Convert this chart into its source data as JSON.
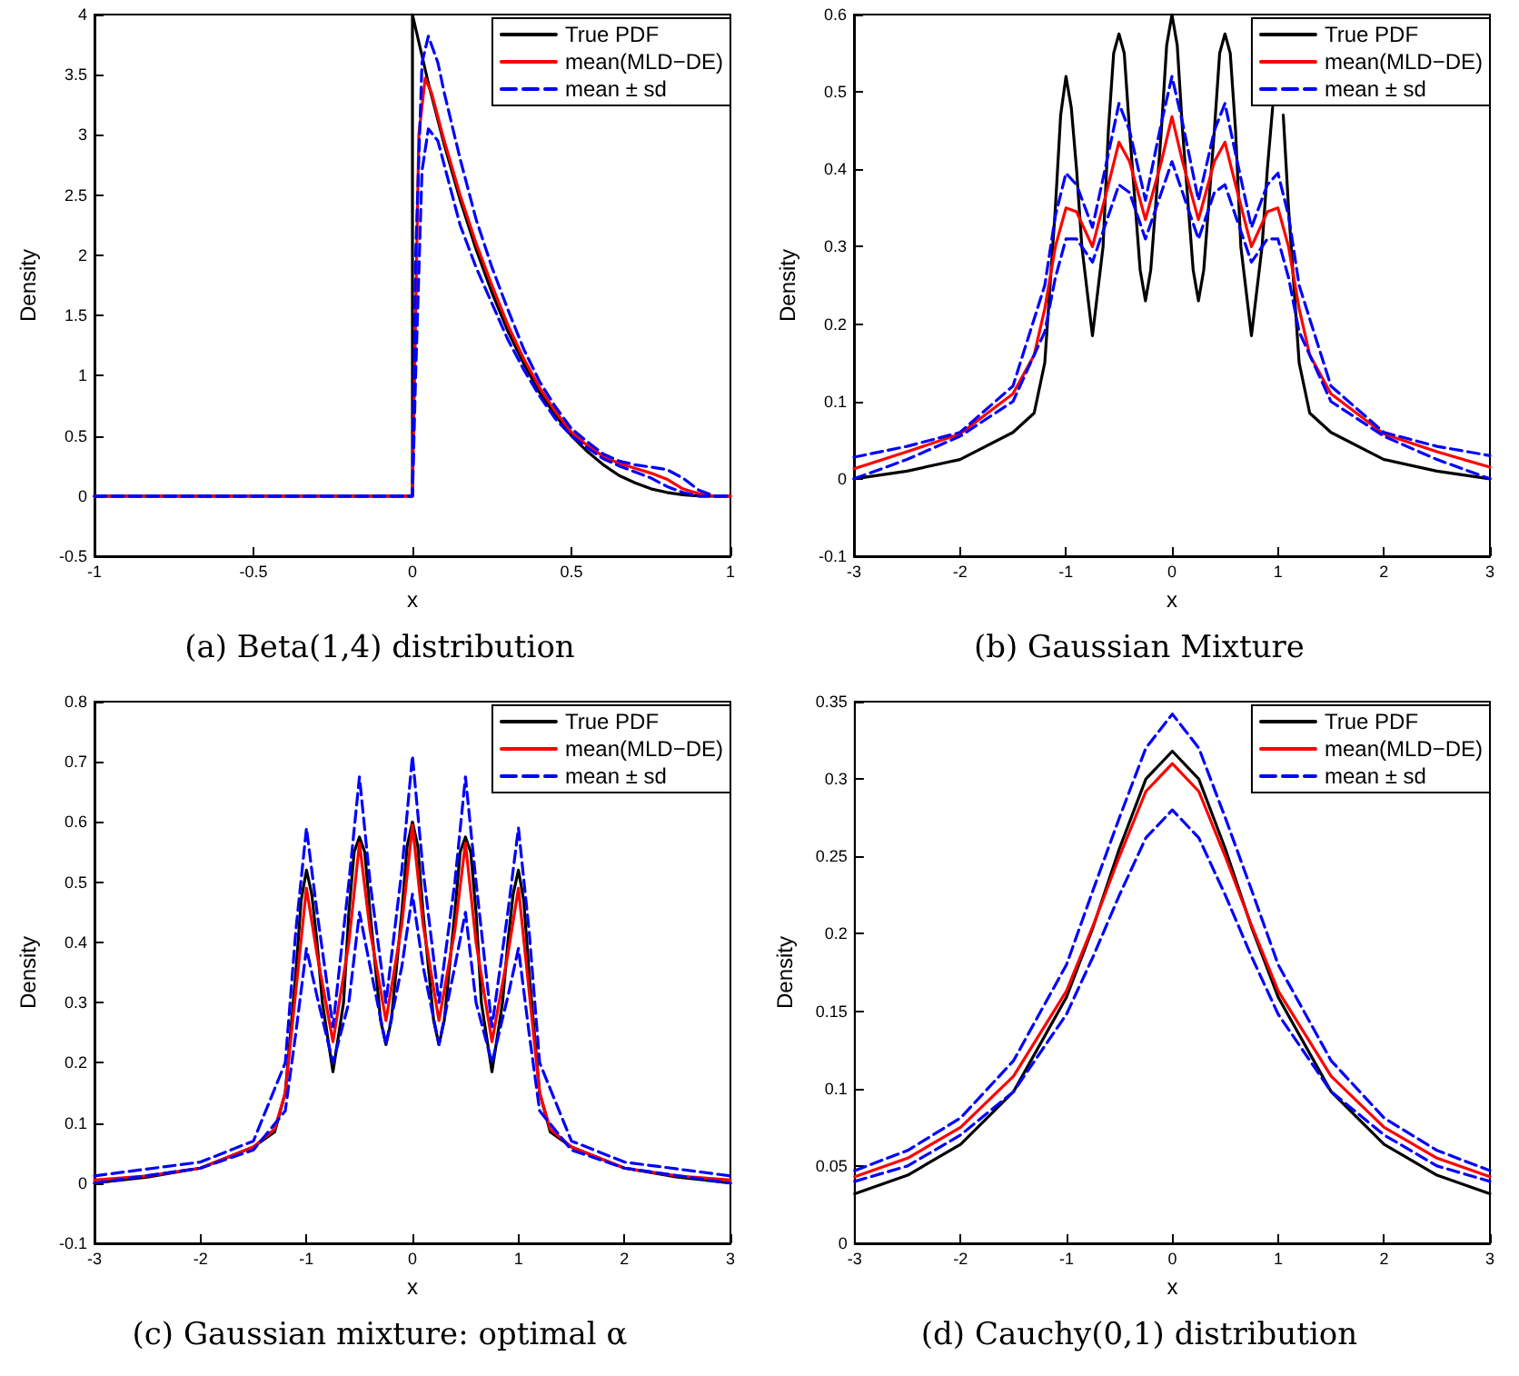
{
  "chart_data": [
    {
      "type": "line",
      "title": "(a) Beta(1,4) distribution",
      "xlabel": "x",
      "ylabel": "Density",
      "xlim": [
        -1,
        1
      ],
      "xticks": [
        -1,
        -0.5,
        0,
        0.5,
        1
      ],
      "ylim": [
        -0.5,
        4
      ],
      "yticks": [
        -0.5,
        0,
        0.5,
        1,
        1.5,
        2,
        2.5,
        3,
        3.5,
        4
      ],
      "grid": false,
      "legend": "top right",
      "marker": "none",
      "series": [
        {
          "name": "True PDF",
          "color": "#000000",
          "line_style": "solid",
          "x": [
            -1,
            0,
            0,
            0.05,
            0.1,
            0.15,
            0.2,
            0.25,
            0.3,
            0.35,
            0.4,
            0.45,
            0.5,
            0.55,
            0.6,
            0.65,
            0.7,
            0.75,
            0.8,
            0.85,
            0.9,
            0.95,
            1
          ],
          "values": [
            0,
            0,
            4,
            3.43,
            2.92,
            2.46,
            2.05,
            1.69,
            1.37,
            1.1,
            0.86,
            0.67,
            0.5,
            0.37,
            0.26,
            0.17,
            0.11,
            0.06,
            0.03,
            0.01,
            0,
            0,
            0
          ]
        },
        {
          "name": "mean(MLD−DE)",
          "color": "#ff0000",
          "line_style": "solid",
          "x": [
            -1,
            0,
            0.01,
            0.02,
            0.04,
            0.06,
            0.1,
            0.15,
            0.2,
            0.25,
            0.3,
            0.35,
            0.4,
            0.45,
            0.5,
            0.55,
            0.6,
            0.65,
            0.7,
            0.75,
            0.8,
            0.85,
            0.9,
            0.95,
            1
          ],
          "values": [
            0,
            0,
            1.5,
            3,
            3.47,
            3.35,
            2.95,
            2.5,
            2.1,
            1.75,
            1.42,
            1.14,
            0.9,
            0.7,
            0.53,
            0.42,
            0.33,
            0.27,
            0.23,
            0.19,
            0.14,
            0.06,
            0.02,
            0,
            0
          ]
        },
        {
          "name": "mean ± sd",
          "color": "#0000ff",
          "line_style": "dashed",
          "x": [
            -1,
            0,
            0.01,
            0.03,
            0.05,
            0.08,
            0.1,
            0.15,
            0.2,
            0.25,
            0.3,
            0.35,
            0.4,
            0.45,
            0.5,
            0.55,
            0.6,
            0.65,
            0.7,
            0.75,
            0.8,
            0.85,
            0.9,
            0.95,
            1
          ],
          "values": [
            0,
            0,
            2,
            3.6,
            3.82,
            3.6,
            3.35,
            2.8,
            2.3,
            1.9,
            1.55,
            1.22,
            0.95,
            0.74,
            0.56,
            0.45,
            0.35,
            0.29,
            0.26,
            0.24,
            0.22,
            0.15,
            0.05,
            0,
            0
          ]
        },
        {
          "color": "#0000ff",
          "line_style": "dashed",
          "x": [
            -1,
            0,
            0.01,
            0.03,
            0.05,
            0.08,
            0.1,
            0.15,
            0.2,
            0.25,
            0.3,
            0.35,
            0.4,
            0.45,
            0.5,
            0.55,
            0.6,
            0.65,
            0.7,
            0.75,
            0.8,
            0.85,
            0.9,
            0.95,
            1
          ],
          "values": [
            0,
            0,
            1,
            2.7,
            3.05,
            2.95,
            2.75,
            2.25,
            1.9,
            1.6,
            1.3,
            1.05,
            0.83,
            0.64,
            0.5,
            0.4,
            0.31,
            0.25,
            0.2,
            0.15,
            0.08,
            0.03,
            0,
            0,
            0
          ]
        }
      ]
    },
    {
      "type": "line",
      "title": "(b) Gaussian Mixture",
      "xlabel": "x",
      "ylabel": "Density",
      "xlim": [
        -3,
        3
      ],
      "xticks": [
        -3,
        -2,
        -1,
        0,
        1,
        2,
        3
      ],
      "ylim": [
        -0.1,
        0.6
      ],
      "yticks": [
        -0.1,
        0,
        0.1,
        0.2,
        0.3,
        0.4,
        0.5,
        0.6
      ],
      "grid": false,
      "legend": "top right",
      "marker": "none",
      "series": [
        {
          "name": "True PDF",
          "color": "#000000",
          "line_style": "solid",
          "x": [
            -3,
            -2.5,
            -2,
            -1.5,
            -1.3,
            -1.2,
            -1.1,
            -1.05,
            -1,
            -0.95,
            -0.9,
            -0.85,
            -0.75,
            -0.65,
            -0.6,
            -0.55,
            -0.5,
            -0.45,
            -0.4,
            -0.3,
            -0.25,
            -0.2,
            -0.1,
            -0.05,
            0,
            0.05,
            0.1,
            0.2,
            0.25,
            0.3,
            0.4,
            0.45,
            0.5,
            0.55,
            0.6,
            0.65,
            0.75,
            0.85,
            0.9,
            0.95,
            1,
            1.05,
            1.1,
            1.2,
            1.3,
            1.5,
            2,
            2.5,
            3
          ],
          "values": [
            0,
            0.01,
            0.025,
            0.06,
            0.085,
            0.15,
            0.35,
            0.47,
            0.52,
            0.48,
            0.4,
            0.3,
            0.185,
            0.3,
            0.45,
            0.55,
            0.575,
            0.55,
            0.45,
            0.27,
            0.23,
            0.27,
            0.45,
            0.56,
            0.6,
            0.56,
            0.45,
            0.27,
            0.23,
            0.27,
            0.45,
            0.55,
            0.575,
            0.55,
            0.45,
            0.3,
            0.185,
            0.3,
            0.4,
            0.48,
            null,
            0.47,
            0.35,
            0.15,
            0.085,
            0.06,
            0.025,
            0.01,
            0
          ]
        },
        {
          "name": "mean(MLD−DE)",
          "color": "#ff0000",
          "line_style": "solid",
          "x": [
            -3,
            -2.5,
            -2,
            -1.5,
            -1.3,
            -1.2,
            -1.1,
            -1,
            -0.9,
            -0.75,
            -0.6,
            -0.5,
            -0.4,
            -0.25,
            -0.1,
            0,
            0.1,
            0.25,
            0.4,
            0.5,
            0.6,
            0.75,
            0.9,
            1,
            1.1,
            1.2,
            1.3,
            1.5,
            2,
            2.5,
            3
          ],
          "values": [
            0.013,
            0.035,
            0.058,
            0.11,
            0.16,
            0.22,
            0.3,
            0.35,
            0.345,
            0.3,
            0.38,
            0.435,
            0.41,
            0.335,
            0.41,
            0.468,
            0.41,
            0.335,
            0.41,
            0.435,
            0.38,
            0.3,
            0.345,
            0.35,
            0.3,
            0.22,
            0.16,
            0.11,
            0.058,
            0.035,
            0.015
          ]
        },
        {
          "name": "mean ± sd",
          "color": "#0000ff",
          "line_style": "dashed",
          "x": [
            -3,
            -2.5,
            -2,
            -1.5,
            -1.2,
            -1.1,
            -1,
            -0.9,
            -0.75,
            -0.6,
            -0.5,
            -0.4,
            -0.25,
            -0.1,
            0,
            0.1,
            0.25,
            0.4,
            0.5,
            0.6,
            0.75,
            0.9,
            1,
            1.1,
            1.2,
            1.5,
            2,
            2.5,
            3
          ],
          "values": [
            0.028,
            0.042,
            0.06,
            0.12,
            0.25,
            0.34,
            0.395,
            0.38,
            0.325,
            0.42,
            0.485,
            0.45,
            0.36,
            0.46,
            0.52,
            0.46,
            0.36,
            0.45,
            0.485,
            0.42,
            0.325,
            0.38,
            0.395,
            0.34,
            0.25,
            0.12,
            0.06,
            0.042,
            0.03
          ]
        },
        {
          "color": "#0000ff",
          "line_style": "dashed",
          "x": [
            -3,
            -2.5,
            -2,
            -1.5,
            -1.2,
            -1.1,
            -1,
            -0.9,
            -0.75,
            -0.6,
            -0.5,
            -0.4,
            -0.25,
            -0.1,
            0,
            0.1,
            0.25,
            0.4,
            0.5,
            0.6,
            0.75,
            0.9,
            1,
            1.1,
            1.2,
            1.5,
            2,
            2.5,
            3
          ],
          "values": [
            0,
            0.025,
            0.055,
            0.1,
            0.19,
            0.26,
            0.31,
            0.31,
            0.28,
            0.34,
            0.38,
            0.37,
            0.31,
            0.37,
            0.41,
            0.37,
            0.31,
            0.37,
            0.38,
            0.34,
            0.28,
            0.31,
            0.31,
            0.26,
            0.19,
            0.1,
            0.055,
            0.025,
            0
          ]
        }
      ]
    },
    {
      "type": "line",
      "title": "(c) Gaussian mixture: optimal α",
      "xlabel": "x",
      "ylabel": "Density",
      "xlim": [
        -3,
        3
      ],
      "xticks": [
        -3,
        -2,
        -1,
        0,
        1,
        2,
        3
      ],
      "ylim": [
        -0.1,
        0.8
      ],
      "yticks": [
        -0.1,
        0,
        0.1,
        0.2,
        0.3,
        0.4,
        0.5,
        0.6,
        0.7,
        0.8
      ],
      "grid": false,
      "legend": "top right",
      "marker": "none",
      "series": [
        {
          "name": "True PDF",
          "color": "#000000",
          "line_style": "solid",
          "x": [
            -3,
            -2.5,
            -2,
            -1.5,
            -1.3,
            -1.2,
            -1.1,
            -1.05,
            -1,
            -0.95,
            -0.9,
            -0.85,
            -0.75,
            -0.65,
            -0.6,
            -0.55,
            -0.5,
            -0.45,
            -0.4,
            -0.3,
            -0.25,
            -0.2,
            -0.1,
            -0.05,
            0,
            0.05,
            0.1,
            0.2,
            0.25,
            0.3,
            0.4,
            0.45,
            0.5,
            0.55,
            0.6,
            0.65,
            0.75,
            0.85,
            0.9,
            0.95,
            1,
            1.05,
            1.1,
            1.2,
            1.3,
            1.5,
            2,
            2.5,
            3
          ],
          "values": [
            0,
            0.01,
            0.025,
            0.06,
            0.085,
            0.15,
            0.35,
            0.47,
            0.52,
            0.48,
            0.4,
            0.3,
            0.185,
            0.3,
            0.45,
            0.55,
            0.575,
            0.55,
            0.45,
            0.27,
            0.23,
            0.27,
            0.45,
            0.56,
            0.6,
            0.56,
            0.45,
            0.27,
            0.23,
            0.27,
            0.45,
            0.55,
            0.575,
            0.55,
            0.45,
            0.3,
            0.185,
            0.3,
            0.4,
            0.48,
            0.52,
            0.47,
            0.35,
            0.15,
            0.085,
            0.06,
            0.025,
            0.01,
            0
          ]
        },
        {
          "name": "mean(MLD−DE)",
          "color": "#ff0000",
          "line_style": "solid",
          "x": [
            -3,
            -2.5,
            -2,
            -1.5,
            -1.3,
            -1.2,
            -1.1,
            -1,
            -0.9,
            -0.75,
            -0.6,
            -0.5,
            -0.4,
            -0.25,
            -0.1,
            0,
            0.1,
            0.25,
            0.4,
            0.5,
            0.6,
            0.75,
            0.9,
            1,
            1.1,
            1.2,
            1.3,
            1.5,
            2,
            2.5,
            3
          ],
          "values": [
            0.005,
            0.012,
            0.025,
            0.06,
            0.09,
            0.15,
            0.32,
            0.49,
            0.38,
            0.235,
            0.4,
            0.565,
            0.42,
            0.27,
            0.43,
            0.595,
            0.43,
            0.27,
            0.42,
            0.565,
            0.4,
            0.235,
            0.38,
            0.49,
            0.32,
            0.15,
            0.09,
            0.06,
            0.025,
            0.012,
            0.005
          ]
        },
        {
          "name": "mean ± sd",
          "color": "#0000ff",
          "line_style": "dashed",
          "x": [
            -3,
            -2,
            -1.5,
            -1.2,
            -1.1,
            -1,
            -0.9,
            -0.75,
            -0.6,
            -0.5,
            -0.4,
            -0.25,
            -0.1,
            0,
            0.1,
            0.25,
            0.4,
            0.5,
            0.6,
            0.75,
            0.9,
            1,
            1.1,
            1.2,
            1.5,
            2,
            3
          ],
          "values": [
            0.012,
            0.035,
            0.07,
            0.2,
            0.42,
            0.59,
            0.45,
            0.26,
            0.5,
            0.675,
            0.5,
            0.3,
            0.52,
            0.71,
            0.52,
            0.3,
            0.5,
            0.675,
            0.5,
            0.26,
            0.45,
            0.59,
            0.42,
            0.2,
            0.07,
            0.035,
            0.012
          ]
        },
        {
          "color": "#0000ff",
          "line_style": "dashed",
          "x": [
            -3,
            -2,
            -1.5,
            -1.2,
            -1.1,
            -1,
            -0.9,
            -0.75,
            -0.6,
            -0.5,
            -0.4,
            -0.25,
            -0.1,
            0,
            0.1,
            0.25,
            0.4,
            0.5,
            0.6,
            0.75,
            0.9,
            1,
            1.1,
            1.2,
            1.5,
            2,
            3
          ],
          "values": [
            0,
            0.025,
            0.055,
            0.12,
            0.25,
            0.39,
            0.31,
            0.2,
            0.3,
            0.45,
            0.36,
            0.23,
            0.36,
            0.48,
            0.36,
            0.23,
            0.36,
            0.45,
            0.3,
            0.2,
            0.31,
            0.39,
            0.25,
            0.12,
            0.055,
            0.025,
            0
          ]
        }
      ]
    },
    {
      "type": "line",
      "title": "(d) Cauchy(0,1) distribution",
      "xlabel": "x",
      "ylabel": "Density",
      "xlim": [
        -3,
        3
      ],
      "xticks": [
        -3,
        -2,
        -1,
        0,
        1,
        2,
        3
      ],
      "ylim": [
        0,
        0.35
      ],
      "yticks": [
        0,
        0.05,
        0.1,
        0.15,
        0.2,
        0.25,
        0.3,
        0.35
      ],
      "grid": false,
      "legend": "top right",
      "marker": "none",
      "series": [
        {
          "name": "True PDF",
          "color": "#000000",
          "line_style": "solid",
          "x": [
            -3,
            -2.5,
            -2,
            -1.5,
            -1,
            -0.75,
            -0.5,
            -0.25,
            0,
            0.25,
            0.5,
            0.75,
            1,
            1.5,
            2,
            2.5,
            3
          ],
          "values": [
            0.032,
            0.044,
            0.064,
            0.098,
            0.159,
            0.204,
            0.255,
            0.3,
            0.318,
            0.3,
            0.255,
            0.204,
            0.159,
            0.098,
            0.064,
            0.044,
            0.032
          ]
        },
        {
          "name": "mean(MLD−DE)",
          "color": "#ff0000",
          "line_style": "solid",
          "x": [
            -3,
            -2.5,
            -2,
            -1.5,
            -1,
            -0.75,
            -0.5,
            -0.25,
            0,
            0.25,
            0.5,
            0.75,
            1,
            1.5,
            2,
            2.5,
            3
          ],
          "values": [
            0.043,
            0.055,
            0.075,
            0.108,
            0.163,
            0.205,
            0.25,
            0.292,
            0.31,
            0.292,
            0.25,
            0.205,
            0.163,
            0.108,
            0.075,
            0.055,
            0.043
          ]
        },
        {
          "name": "mean ± sd",
          "color": "#0000ff",
          "line_style": "dashed",
          "x": [
            -3,
            -2.5,
            -2,
            -1.5,
            -1,
            -0.75,
            -0.5,
            -0.25,
            0,
            0.25,
            0.5,
            0.75,
            1,
            1.5,
            2,
            2.5,
            3
          ],
          "values": [
            0.047,
            0.06,
            0.081,
            0.118,
            0.18,
            0.228,
            0.275,
            0.32,
            0.342,
            0.32,
            0.275,
            0.228,
            0.18,
            0.118,
            0.081,
            0.06,
            0.047
          ]
        },
        {
          "color": "#0000ff",
          "line_style": "dashed",
          "x": [
            -3,
            -2.5,
            -2,
            -1.5,
            -1,
            -0.75,
            -0.5,
            -0.25,
            0,
            0.25,
            0.5,
            0.75,
            1,
            1.5,
            2,
            2.5,
            3
          ],
          "values": [
            0.04,
            0.05,
            0.07,
            0.098,
            0.148,
            0.185,
            0.225,
            0.262,
            0.28,
            0.262,
            0.225,
            0.185,
            0.148,
            0.098,
            0.07,
            0.05,
            0.04
          ]
        }
      ]
    }
  ]
}
